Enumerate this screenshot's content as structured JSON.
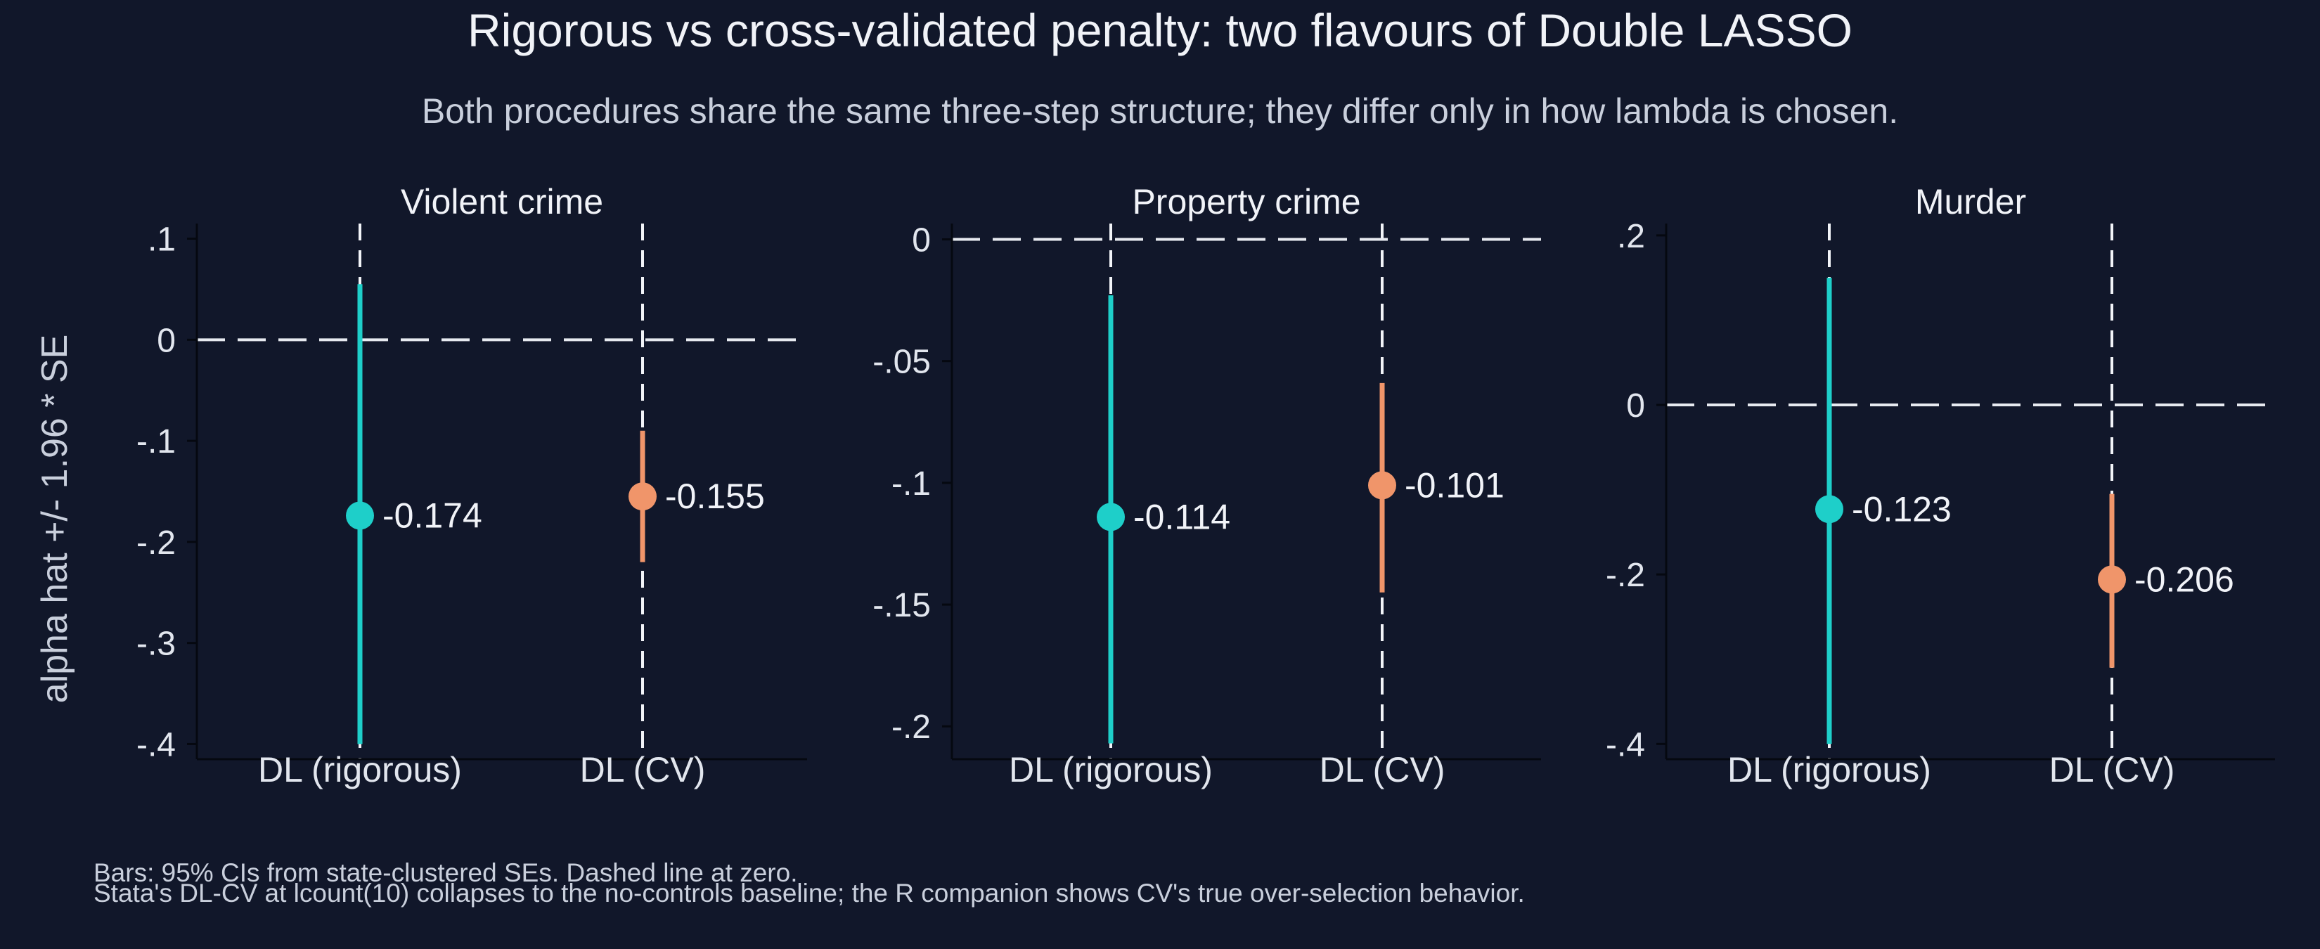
{
  "figure": {
    "title": "Rigorous vs cross-validated penalty: two flavours of Double LASSO",
    "subtitle": "Both procedures share the same three-step structure; they differ only in how lambda is chosen.",
    "ylabel": "alpha hat +/- 1.96 * SE",
    "notes": [
      "Bars: 95% CIs from state-clustered SEs. Dashed line at zero.",
      "Stata's DL-CV at lcount(10) collapses to the no-controls baseline; the R companion shows CV's true over-selection behavior."
    ]
  },
  "colors": {
    "background": "#11172a",
    "rigorous": "#1ecfc9",
    "cv": "#f0956a",
    "zero_line": "#e7eaf0",
    "axis": "#050810"
  },
  "chart_data": [
    {
      "type": "scatter",
      "subtype": "point-with-confidence-interval",
      "title": "Violent crime",
      "categories": [
        "DL (rigorous)",
        "DL (CV)"
      ],
      "estimates": [
        -0.174,
        -0.155
      ],
      "ci_low": [
        -0.4,
        -0.22
      ],
      "ci_high": [
        0.055,
        -0.09
      ],
      "point_labels": [
        "-0.174",
        "-0.155"
      ],
      "yticks": [
        0.1,
        0,
        -0.1,
        -0.2,
        -0.3,
        -0.4
      ],
      "ytick_labels": [
        ".1",
        "0",
        "-.1",
        "-.2",
        "-.3",
        "-.4"
      ],
      "ylim": [
        -0.415,
        0.115
      ],
      "reference_line": 0,
      "grid": false
    },
    {
      "type": "scatter",
      "subtype": "point-with-confidence-interval",
      "title": "Property crime",
      "categories": [
        "DL (rigorous)",
        "DL (CV)"
      ],
      "estimates": [
        -0.114,
        -0.101
      ],
      "ci_low": [
        -0.207,
        -0.145
      ],
      "ci_high": [
        -0.023,
        -0.059
      ],
      "point_labels": [
        "-0.114",
        "-0.101"
      ],
      "yticks": [
        0,
        -0.05,
        -0.1,
        -0.15,
        -0.2
      ],
      "ytick_labels": [
        "0",
        "-.05",
        "-.1",
        "-.15",
        "-.2"
      ],
      "ylim": [
        -0.2135,
        0.0065
      ],
      "reference_line": 0,
      "grid": false
    },
    {
      "type": "scatter",
      "subtype": "point-with-confidence-interval",
      "title": "Murder",
      "categories": [
        "DL (rigorous)",
        "DL (CV)"
      ],
      "estimates": [
        -0.123,
        -0.206
      ],
      "ci_low": [
        -0.4,
        -0.31
      ],
      "ci_high": [
        0.15,
        -0.105
      ],
      "point_labels": [
        "-0.123",
        "-0.206"
      ],
      "yticks": [
        0.2,
        0,
        -0.2,
        -0.4
      ],
      "ytick_labels": [
        ".2",
        "0",
        "-.2",
        "-.4"
      ],
      "ylim": [
        -0.418,
        0.214
      ],
      "reference_line": 0,
      "grid": false
    }
  ]
}
